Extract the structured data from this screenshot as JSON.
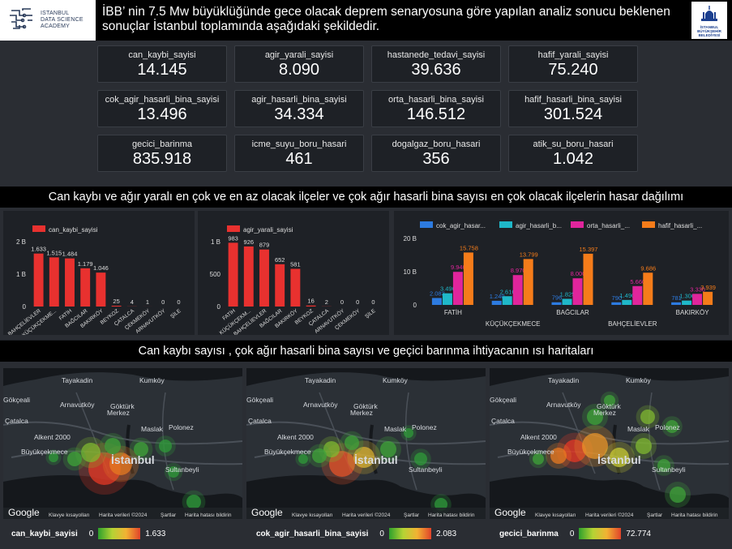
{
  "header": {
    "academy_lines": [
      "ISTANBUL",
      "DATA SCIENCE",
      "ACADEMY"
    ],
    "title": "İBB’ nin 7.5 Mw büyüklüğünde gece olacak deprem senaryosuna göre yapılan analiz sonucu beklenen sonuçlar İstanbul toplamında aşağıdaki şekildedir.",
    "ibb_logo_lines": [
      "İSTANBUL",
      "BÜYÜKŞEHİR",
      "BELEDİYESİ"
    ]
  },
  "kpis": [
    {
      "label": "can_kaybi_sayisi",
      "value": "14.145"
    },
    {
      "label": "agir_yarali_sayisi",
      "value": "8.090"
    },
    {
      "label": "hastanede_tedavi_sayisi",
      "value": "39.636"
    },
    {
      "label": "hafif_yarali_sayisi",
      "value": "75.240"
    },
    {
      "label": "cok_agir_hasarli_bina_sayisi",
      "value": "13.496"
    },
    {
      "label": "agir_hasarli_bina_sayisi",
      "value": "34.334"
    },
    {
      "label": "orta_hasarli_bina_sayisi",
      "value": "146.512"
    },
    {
      "label": "hafif_hasarli_bina_sayisi",
      "value": "301.524"
    },
    {
      "label": "gecici_barinma",
      "value": "835.918"
    },
    {
      "label": "icme_suyu_boru_hasari",
      "value": "461"
    },
    {
      "label": "dogalgaz_boru_hasari",
      "value": "356"
    },
    {
      "label": "atik_su_boru_hasari",
      "value": "1.042"
    }
  ],
  "section1_title": "Can kaybı ve ağır yaralı en çok ve en az olacak ilçeler ve çok ağır hasarli bina sayısı en çok olacak ilçelerin hasar dağılımı",
  "section2_title": "Can kaybı sayısı , çok ağır hasarli bina sayısı ve geçici barınma ihtiyacanın ısı haritaları",
  "chart_data": [
    {
      "type": "bar",
      "legend": "can_kaybi_sayisi",
      "color": "#e8312f",
      "categories": [
        "BAHÇELİEVLER",
        "KÜÇÜKÇEKME...",
        "FATİH",
        "BAĞCILAR",
        "BAKIRKÖY",
        "BEYKOZ",
        "ÇATALCA",
        "ÇEKMEKÖY",
        "ARNAVUTKÖY",
        "ŞİLE"
      ],
      "values": [
        1633,
        1515,
        1484,
        1179,
        1046,
        25,
        4,
        1,
        0,
        0
      ],
      "labels": [
        "1.633",
        "1.515",
        "1.484",
        "1.179",
        "1.046",
        "25",
        "4",
        "1",
        "0",
        "0"
      ],
      "yticks": [
        "0",
        "1 B",
        "2 B"
      ],
      "ylim": [
        0,
        2000
      ]
    },
    {
      "type": "bar",
      "legend": "agir_yarali_sayisi",
      "color": "#e8312f",
      "categories": [
        "FATİH",
        "KÜÇÜKÇEKM...",
        "BAHÇELİEVLER",
        "BAĞCILAR",
        "BAKIRKÖY",
        "BEYKOZ",
        "ÇATALCA",
        "ARNAVUTKÖY",
        "ÇEKMEKÖY",
        "ŞİLE"
      ],
      "values": [
        983,
        926,
        879,
        652,
        581,
        16,
        2,
        0,
        0,
        0
      ],
      "labels": [
        "983",
        "926",
        "879",
        "652",
        "581",
        "16",
        "2",
        "0",
        "0",
        "0"
      ],
      "yticks": [
        "0",
        "500",
        "1 B"
      ],
      "ylim": [
        0,
        1000
      ]
    },
    {
      "type": "bar",
      "categories": [
        "FATİH",
        "KÜÇÜKÇEKMECE",
        "BAĞCILAR",
        "BAHÇELİEVLER",
        "BAKIRKÖY"
      ],
      "yticks": [
        "0",
        "10 B",
        "20 B"
      ],
      "ylim": [
        0,
        20000
      ],
      "series": [
        {
          "name": "cok_agir_hasar...",
          "color": "#2d7be0",
          "values": [
            2083,
            1240,
            796,
            790,
            781
          ],
          "labels": [
            "2.083",
            "1.240",
            "796",
            "790",
            "781"
          ]
        },
        {
          "name": "agir_hasarli_b...",
          "color": "#1fb8c9",
          "values": [
            3496,
            2616,
            1825,
            1490,
            1306
          ],
          "labels": [
            "3.496",
            "2.616",
            "1.825",
            "1.490",
            "1.306"
          ]
        },
        {
          "name": "orta_hasarli_...",
          "color": "#e0259c",
          "values": [
            9940,
            8970,
            8000,
            5660,
            3330
          ],
          "labels": [
            "9.940",
            "8.970",
            "8.000",
            "5.660",
            "3.330"
          ]
        },
        {
          "name": "hafif_hasarli_...",
          "color": "#f57c1a",
          "values": [
            15758,
            13799,
            15397,
            9686,
            3939
          ],
          "labels": [
            "15.758",
            "13.799",
            "15.397",
            "9.686",
            "3.939"
          ]
        }
      ]
    }
  ],
  "maps": [
    {
      "metric": "can_kaybi_sayisi",
      "min": "0",
      "max": "1.633"
    },
    {
      "metric": "cok_agir_hasarli_bina_sayisi",
      "min": "0",
      "max": "2.083"
    },
    {
      "metric": "gecici_barinma",
      "min": "0",
      "max": "72.774"
    }
  ],
  "map_labels": {
    "places": [
      "Tayakadin",
      "Kumköy",
      "Gökçeali",
      "Arnavutköy",
      "Göktürk",
      "Merkez",
      "Çatalca",
      "Maslak",
      "Polonez",
      "Alkent 2000",
      "Büyükçekmece",
      "İstanbul",
      "Sultanbeyli"
    ],
    "google": "Google",
    "footer": [
      "Klavye kısayolları",
      "Harita verileri ©2024",
      "Şartlar",
      "Harita hatası bildirin"
    ]
  }
}
